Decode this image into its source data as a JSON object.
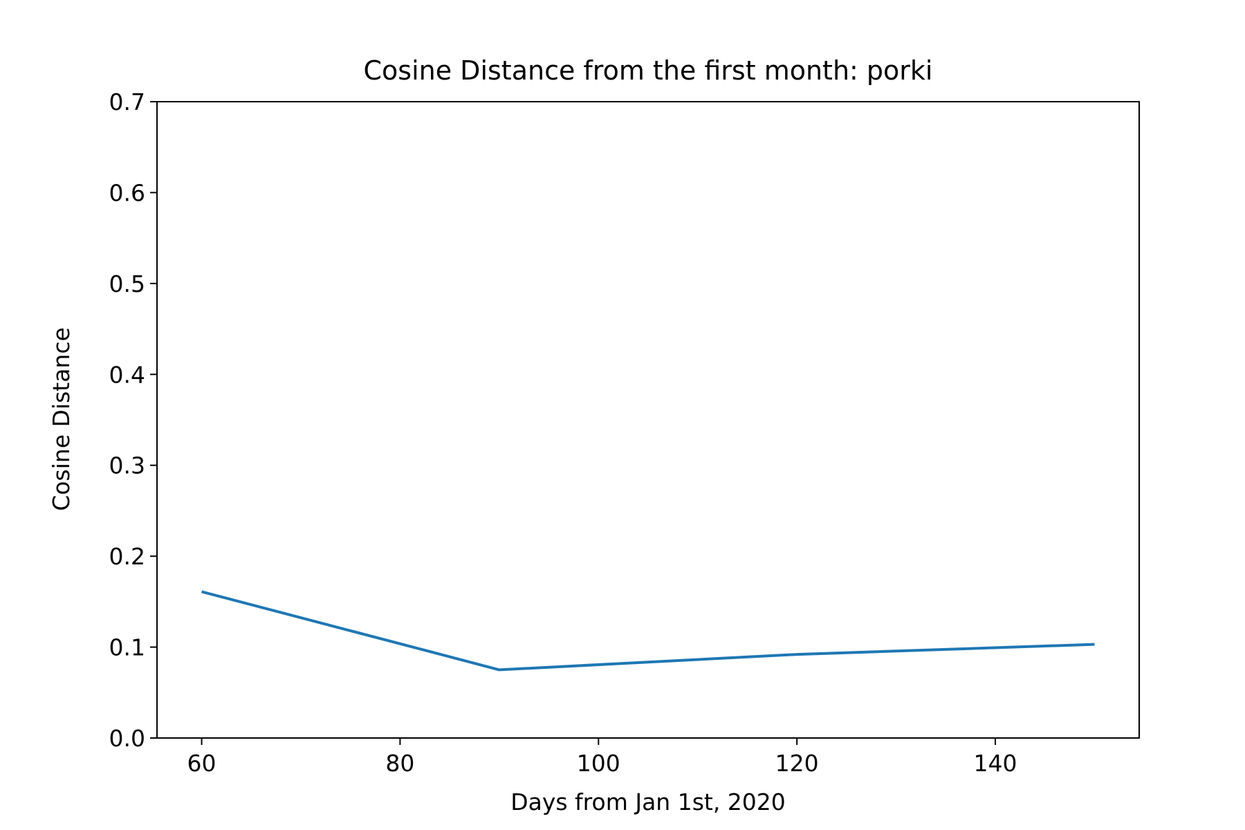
{
  "chart_data": {
    "type": "line",
    "title": "Cosine Distance from the first month: porki",
    "xlabel": "Days from Jan 1st, 2020",
    "ylabel": "Cosine Distance",
    "xlim": [
      55.5,
      154.5
    ],
    "ylim": [
      0,
      0.7
    ],
    "xticks": [
      60,
      80,
      100,
      120,
      140
    ],
    "xtick_labels": [
      "60",
      "80",
      "100",
      "120",
      "140"
    ],
    "yticks": [
      0,
      0.1,
      0.2,
      0.3,
      0.4,
      0.5,
      0.6,
      0.7
    ],
    "ytick_labels": [
      "0.0",
      "0.1",
      "0.2",
      "0.3",
      "0.4",
      "0.5",
      "0.6",
      "0.7"
    ],
    "grid": false,
    "series": [
      {
        "color": "#1f77b4",
        "x": [
          60,
          90,
          120,
          150
        ],
        "y": [
          0.161,
          0.075,
          0.092,
          0.103
        ]
      }
    ]
  }
}
